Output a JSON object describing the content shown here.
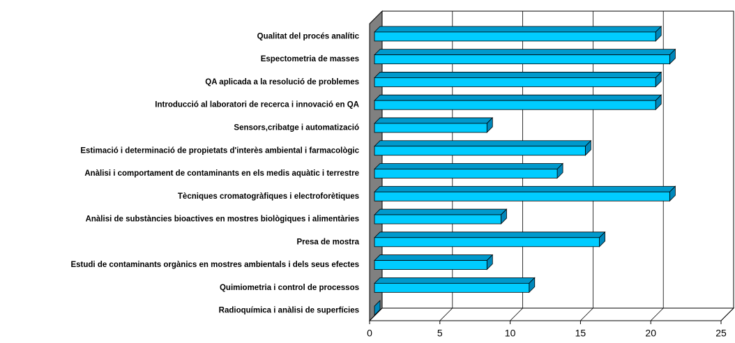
{
  "chart_data": {
    "type": "bar3d_horizontal",
    "categories": [
      "Qualitat del procés analític",
      "Espectometria de masses",
      "QA aplicada a la resolució de problemes",
      "Introducció al laboratori de recerca i innovació en QA",
      "Sensors,cribatge i automatizació",
      "Estimació i determinació de propietats d'interès ambiental i farmacològic",
      "Anàlisi i comportament de contaminants en els medis aquàtic i terrestre",
      "Tècniques cromatogràfiques i electroforètiques",
      "Anàlisi de substàncies bioactives en mostres biològiques i alimentàries",
      "Presa de mostra",
      "Estudi de contaminants orgànics en mostres ambientals i dels seus efectes",
      "Quimiometria i control de processos",
      "Radioquímica i anàlisi de superfícies"
    ],
    "values": [
      20,
      21,
      20,
      20,
      8,
      15,
      13,
      21,
      9,
      16,
      8,
      11,
      0
    ],
    "color": "#00ccff",
    "xlim": [
      0,
      25
    ],
    "xticks": [
      0,
      5,
      10,
      15,
      20,
      25
    ],
    "grid": true
  }
}
